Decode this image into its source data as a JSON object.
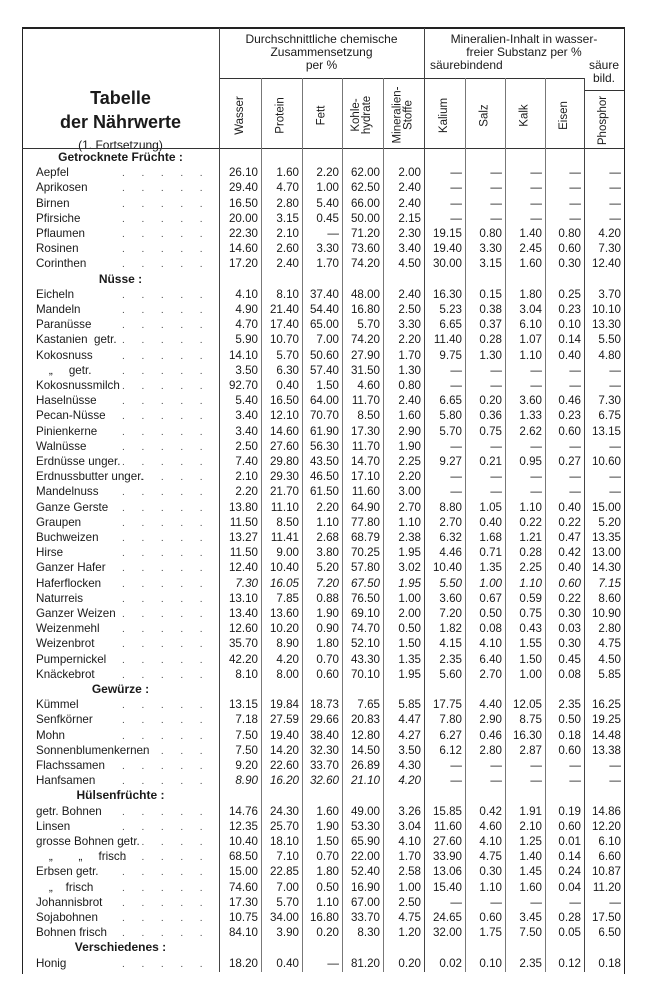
{
  "title": {
    "line1": "Tabelle",
    "line2": "der Nährwerte",
    "subtitle": "(1. Fortsetzung)"
  },
  "groups": {
    "chem": [
      "Durchschnittliche chemische",
      "Zusammensetzung",
      "per %"
    ],
    "mineral": [
      "Mineralien-Inhalt in wasser-",
      "freier Substanz per %"
    ],
    "basic": "säurebindend",
    "acid": [
      "säure",
      "bild."
    ]
  },
  "columns": [
    "Wasser",
    "Protein",
    "Fett",
    "Kohle-\nhydrate",
    "Mineralien-\nStoffe",
    "Kalium",
    "Salz",
    "Kalk",
    "Eisen",
    "Phosphor"
  ],
  "sections": [
    {
      "title": "Getrocknete Früchte :",
      "rows": [
        {
          "name": "Aepfel",
          "values": [
            "26.10",
            "1.60",
            "2.20",
            "62.00",
            "2.00",
            "—",
            "—",
            "—",
            "—",
            "—"
          ]
        },
        {
          "name": "Aprikosen",
          "values": [
            "29.40",
            "4.70",
            "1.00",
            "62.50",
            "2.40",
            "—",
            "—",
            "—",
            "—",
            "—"
          ]
        },
        {
          "name": "Birnen",
          "values": [
            "16.50",
            "2.80",
            "5.40",
            "66.00",
            "2.40",
            "—",
            "—",
            "—",
            "—",
            "—"
          ]
        },
        {
          "name": "Pfirsiche",
          "values": [
            "20.00",
            "3.15",
            "0.45",
            "50.00",
            "2.15",
            "—",
            "—",
            "—",
            "—",
            "—"
          ]
        },
        {
          "name": "Pflaumen",
          "values": [
            "22.30",
            "2.10",
            "—",
            "71.20",
            "2.30",
            "19.15",
            "0.80",
            "1.40",
            "0.80",
            "4.20"
          ]
        },
        {
          "name": "Rosinen",
          "values": [
            "14.60",
            "2.60",
            "3.30",
            "73.60",
            "3.40",
            "19.40",
            "3.30",
            "2.45",
            "0.60",
            "7.30"
          ]
        },
        {
          "name": "Corinthen",
          "values": [
            "17.20",
            "2.40",
            "1.70",
            "74.20",
            "4.50",
            "30.00",
            "3.15",
            "1.60",
            "0.30",
            "12.40"
          ]
        }
      ]
    },
    {
      "title": "Nüsse :",
      "rows": [
        {
          "name": "Eicheln",
          "values": [
            "4.10",
            "8.10",
            "37.40",
            "48.00",
            "2.40",
            "16.30",
            "0.15",
            "1.80",
            "0.25",
            "3.70"
          ]
        },
        {
          "name": "Mandeln",
          "values": [
            "4.90",
            "21.40",
            "54.40",
            "16.80",
            "2.50",
            "5.23",
            "0.38",
            "3.04",
            "0.23",
            "10.10"
          ]
        },
        {
          "name": "Paranüsse",
          "values": [
            "4.70",
            "17.40",
            "65.00",
            "5.70",
            "3.30",
            "6.65",
            "0.37",
            "6.10",
            "0.10",
            "13.30"
          ]
        },
        {
          "name": "Kastanien  getr.",
          "values": [
            "5.90",
            "10.70",
            "7.00",
            "74.20",
            "2.20",
            "11.40",
            "0.28",
            "1.07",
            "0.14",
            "5.50"
          ]
        },
        {
          "name": "Kokosnuss",
          "values": [
            "14.10",
            "5.70",
            "50.60",
            "27.90",
            "1.70",
            "9.75",
            "1.30",
            "1.10",
            "0.40",
            "4.80"
          ]
        },
        {
          "name": "    „     getr.",
          "values": [
            "3.50",
            "6.30",
            "57.40",
            "31.50",
            "1.30",
            "—",
            "—",
            "—",
            "—",
            "—"
          ]
        },
        {
          "name": "Kokosnussmilch",
          "values": [
            "92.70",
            "0.40",
            "1.50",
            "4.60",
            "0.80",
            "—",
            "—",
            "—",
            "—",
            "—"
          ]
        },
        {
          "name": "Haselnüsse",
          "values": [
            "5.40",
            "16.50",
            "64.00",
            "11.70",
            "2.40",
            "6.65",
            "0.20",
            "3.60",
            "0.46",
            "7.30"
          ]
        },
        {
          "name": "Pecan-Nüsse",
          "values": [
            "3.40",
            "12.10",
            "70.70",
            "8.50",
            "1.60",
            "5.80",
            "0.36",
            "1.33",
            "0.23",
            "6.75"
          ]
        },
        {
          "name": "Pinienkerne",
          "values": [
            "3.40",
            "14.60",
            "61.90",
            "17.30",
            "2.90",
            "5.70",
            "0.75",
            "2.62",
            "0.60",
            "13.15"
          ]
        },
        {
          "name": "Walnüsse",
          "values": [
            "2.50",
            "27.60",
            "56.30",
            "11.70",
            "1.90",
            "—",
            "—",
            "—",
            "—",
            "—"
          ]
        },
        {
          "name": "Erdnüsse unger.",
          "values": [
            "7.40",
            "29.80",
            "43.50",
            "14.70",
            "2.25",
            "9.27",
            "0.21",
            "0.95",
            "0.27",
            "10.60"
          ]
        },
        {
          "name": "Erdnussbutter unger.",
          "values": [
            "2.10",
            "29.30",
            "46.50",
            "17.10",
            "2.20",
            "—",
            "—",
            "—",
            "—",
            "—"
          ]
        },
        {
          "name": "Mandelnuss",
          "values": [
            "2.20",
            "21.70",
            "61.50",
            "11.60",
            "3.00",
            "—",
            "—",
            "—",
            "—",
            "—"
          ]
        },
        {
          "name": "Ganze Gerste",
          "values": [
            "13.80",
            "11.10",
            "2.20",
            "64.90",
            "2.70",
            "8.80",
            "1.05",
            "1.10",
            "0.40",
            "15.00"
          ]
        },
        {
          "name": "Graupen",
          "values": [
            "11.50",
            "8.50",
            "1.10",
            "77.80",
            "1.10",
            "2.70",
            "0.40",
            "0.22",
            "0.22",
            "5.20"
          ]
        },
        {
          "name": "Buchweizen",
          "values": [
            "13.27",
            "11.41",
            "2.68",
            "68.79",
            "2.38",
            "6.32",
            "1.68",
            "1.21",
            "0.47",
            "13.35"
          ]
        },
        {
          "name": "Hirse",
          "values": [
            "11.50",
            "9.00",
            "3.80",
            "70.25",
            "1.95",
            "4.46",
            "0.71",
            "0.28",
            "0.42",
            "13.00"
          ]
        },
        {
          "name": "Ganzer Hafer",
          "values": [
            "12.40",
            "10.40",
            "5.20",
            "57.80",
            "3.02",
            "10.40",
            "1.35",
            "2.25",
            "0.40",
            "14.30"
          ]
        },
        {
          "name": "Haferflocken",
          "italic": [
            0,
            1,
            2,
            3,
            4,
            5,
            6,
            7,
            8,
            9
          ],
          "values": [
            "7.30",
            "16.05",
            "7.20",
            "67.50",
            "1.95",
            "5.50",
            "1.00",
            "1.10",
            "0.60",
            "7.15"
          ]
        },
        {
          "name": "Naturreis",
          "values": [
            "13.10",
            "7.85",
            "0.88",
            "76.50",
            "1.00",
            "3.60",
            "0.67",
            "0.59",
            "0.22",
            "8.60"
          ]
        },
        {
          "name": "Ganzer Weizen",
          "values": [
            "13.40",
            "13.60",
            "1.90",
            "69.10",
            "2.00",
            "7.20",
            "0.50",
            "0.75",
            "0.30",
            "10.90"
          ]
        },
        {
          "name": "Weizenmehl",
          "values": [
            "12.60",
            "10.20",
            "0.90",
            "74.70",
            "0.50",
            "1.82",
            "0.08",
            "0.43",
            "0.03",
            "2.80"
          ]
        },
        {
          "name": "Weizenbrot",
          "values": [
            "35.70",
            "8.90",
            "1.80",
            "52.10",
            "1.50",
            "4.15",
            "4.10",
            "1.55",
            "0.30",
            "4.75"
          ]
        },
        {
          "name": "Pumpernickel",
          "values": [
            "42.20",
            "4.20",
            "0.70",
            "43.30",
            "1.35",
            "2.35",
            "6.40",
            "1.50",
            "0.45",
            "4.50"
          ]
        },
        {
          "name": "Knäckebrot",
          "values": [
            "8.10",
            "8.00",
            "0.60",
            "70.10",
            "1.95",
            "5.60",
            "2.70",
            "1.00",
            "0.08",
            "5.85"
          ]
        }
      ]
    },
    {
      "title": "Gewürze :",
      "rows": [
        {
          "name": "Kümmel",
          "values": [
            "13.15",
            "19.84",
            "18.73",
            "7.65",
            "5.85",
            "17.75",
            "4.40",
            "12.05",
            "2.35",
            "16.25"
          ]
        },
        {
          "name": "Senfkörner",
          "values": [
            "7.18",
            "27.59",
            "29.66",
            "20.83",
            "4.47",
            "7.80",
            "2.90",
            "8.75",
            "0.50",
            "19.25"
          ]
        },
        {
          "name": "Mohn",
          "values": [
            "7.50",
            "19.40",
            "38.40",
            "12.80",
            "4.27",
            "6.27",
            "0.46",
            "16.30",
            "0.18",
            "14.48"
          ]
        },
        {
          "name": "Sonnenblumenkernen",
          "values": [
            "7.50",
            "14.20",
            "32.30",
            "14.50",
            "3.50",
            "6.12",
            "2.80",
            "2.87",
            "0.60",
            "13.38"
          ]
        },
        {
          "name": "Flachssamen",
          "values": [
            "9.20",
            "22.60",
            "33.70",
            "26.89",
            "4.30",
            "—",
            "—",
            "—",
            "—",
            "—"
          ]
        },
        {
          "name": "Hanfsamen",
          "italic": [
            0,
            1,
            2,
            3,
            4
          ],
          "values": [
            "8.90",
            "16.20",
            "32.60",
            "21.10",
            "4.20",
            "—",
            "—",
            "—",
            "—",
            "—"
          ]
        }
      ]
    },
    {
      "title": "Hülsenfrüchte :",
      "rows": [
        {
          "name": "getr. Bohnen",
          "values": [
            "14.76",
            "24.30",
            "1.60",
            "49.00",
            "3.26",
            "15.85",
            "0.42",
            "1.91",
            "0.19",
            "14.86"
          ]
        },
        {
          "name": "Linsen",
          "values": [
            "12.35",
            "25.70",
            "1.90",
            "53.30",
            "3.04",
            "11.60",
            "4.60",
            "2.10",
            "0.60",
            "12.20"
          ]
        },
        {
          "name": "grosse Bohnen getr.",
          "values": [
            "10.40",
            "18.10",
            "1.50",
            "65.90",
            "4.10",
            "27.60",
            "4.10",
            "1.25",
            "0.01",
            "6.10"
          ]
        },
        {
          "name": "    „        „     frisch",
          "values": [
            "68.50",
            "7.10",
            "0.70",
            "22.00",
            "1.70",
            "33.90",
            "4.75",
            "1.40",
            "0.14",
            "6.60"
          ]
        },
        {
          "name": "Erbsen getr.",
          "values": [
            "15.00",
            "22.85",
            "1.80",
            "52.40",
            "2.58",
            "13.06",
            "0.30",
            "1.45",
            "0.24",
            "10.87"
          ]
        },
        {
          "name": "    „    frisch",
          "values": [
            "74.60",
            "7.00",
            "0.50",
            "16.90",
            "1.00",
            "15.40",
            "1.10",
            "1.60",
            "0.04",
            "11.20"
          ]
        },
        {
          "name": "Johannisbrot",
          "values": [
            "17.30",
            "5.70",
            "1.10",
            "67.00",
            "2.50",
            "—",
            "—",
            "—",
            "—",
            "—"
          ]
        },
        {
          "name": "Sojabohnen",
          "values": [
            "10.75",
            "34.00",
            "16.80",
            "33.70",
            "4.75",
            "24.65",
            "0.60",
            "3.45",
            "0.28",
            "17.50"
          ]
        },
        {
          "name": "Bohnen frisch",
          "values": [
            "84.10",
            "3.90",
            "0.20",
            "8.30",
            "1.20",
            "32.00",
            "1.75",
            "7.50",
            "0.05",
            "6.50"
          ]
        }
      ]
    },
    {
      "title": "Verschiedenes :",
      "rows": [
        {
          "name": "Honig",
          "values": [
            "18.20",
            "0.40",
            "—",
            "81.20",
            "0.20",
            "0.02",
            "0.10",
            "2.35",
            "0.12",
            "0.18"
          ]
        }
      ]
    }
  ]
}
